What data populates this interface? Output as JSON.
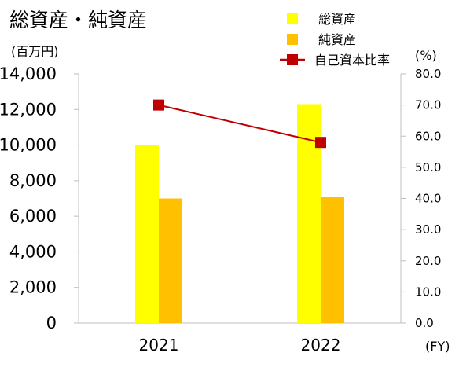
{
  "chart_data": {
    "type": "bar",
    "title": "総資産・純資産",
    "categories": [
      "2021",
      "2022"
    ],
    "x_unit": "(FY)",
    "y_left": {
      "unit": "(百万円)",
      "ylim": [
        0,
        14000
      ],
      "ticks": [
        0,
        2000,
        4000,
        6000,
        8000,
        10000,
        12000,
        14000
      ],
      "tick_labels": [
        "0",
        "2,000",
        "4,000",
        "6,000",
        "8,000",
        "10,000",
        "12,000",
        "14,000"
      ]
    },
    "y_right": {
      "unit": "(%)",
      "ylim": [
        0,
        80
      ],
      "ticks": [
        0,
        10,
        20,
        30,
        40,
        50,
        60,
        70,
        80
      ],
      "tick_labels": [
        "0.0",
        "10.0",
        "20.0",
        "30.0",
        "40.0",
        "50.0",
        "60.0",
        "70.0",
        "80.0"
      ]
    },
    "series": [
      {
        "name": "総資産",
        "kind": "bar",
        "axis": "left",
        "color": "#ffff00",
        "values": [
          10000,
          12300
        ]
      },
      {
        "name": "純資産",
        "kind": "bar",
        "axis": "left",
        "color": "#ffc000",
        "values": [
          7000,
          7100
        ]
      },
      {
        "name": "自己資本比率",
        "kind": "line",
        "axis": "right",
        "color": "#c00000",
        "values": [
          70.0,
          58.0
        ]
      }
    ],
    "legend_position": "top-right",
    "grid": false
  }
}
